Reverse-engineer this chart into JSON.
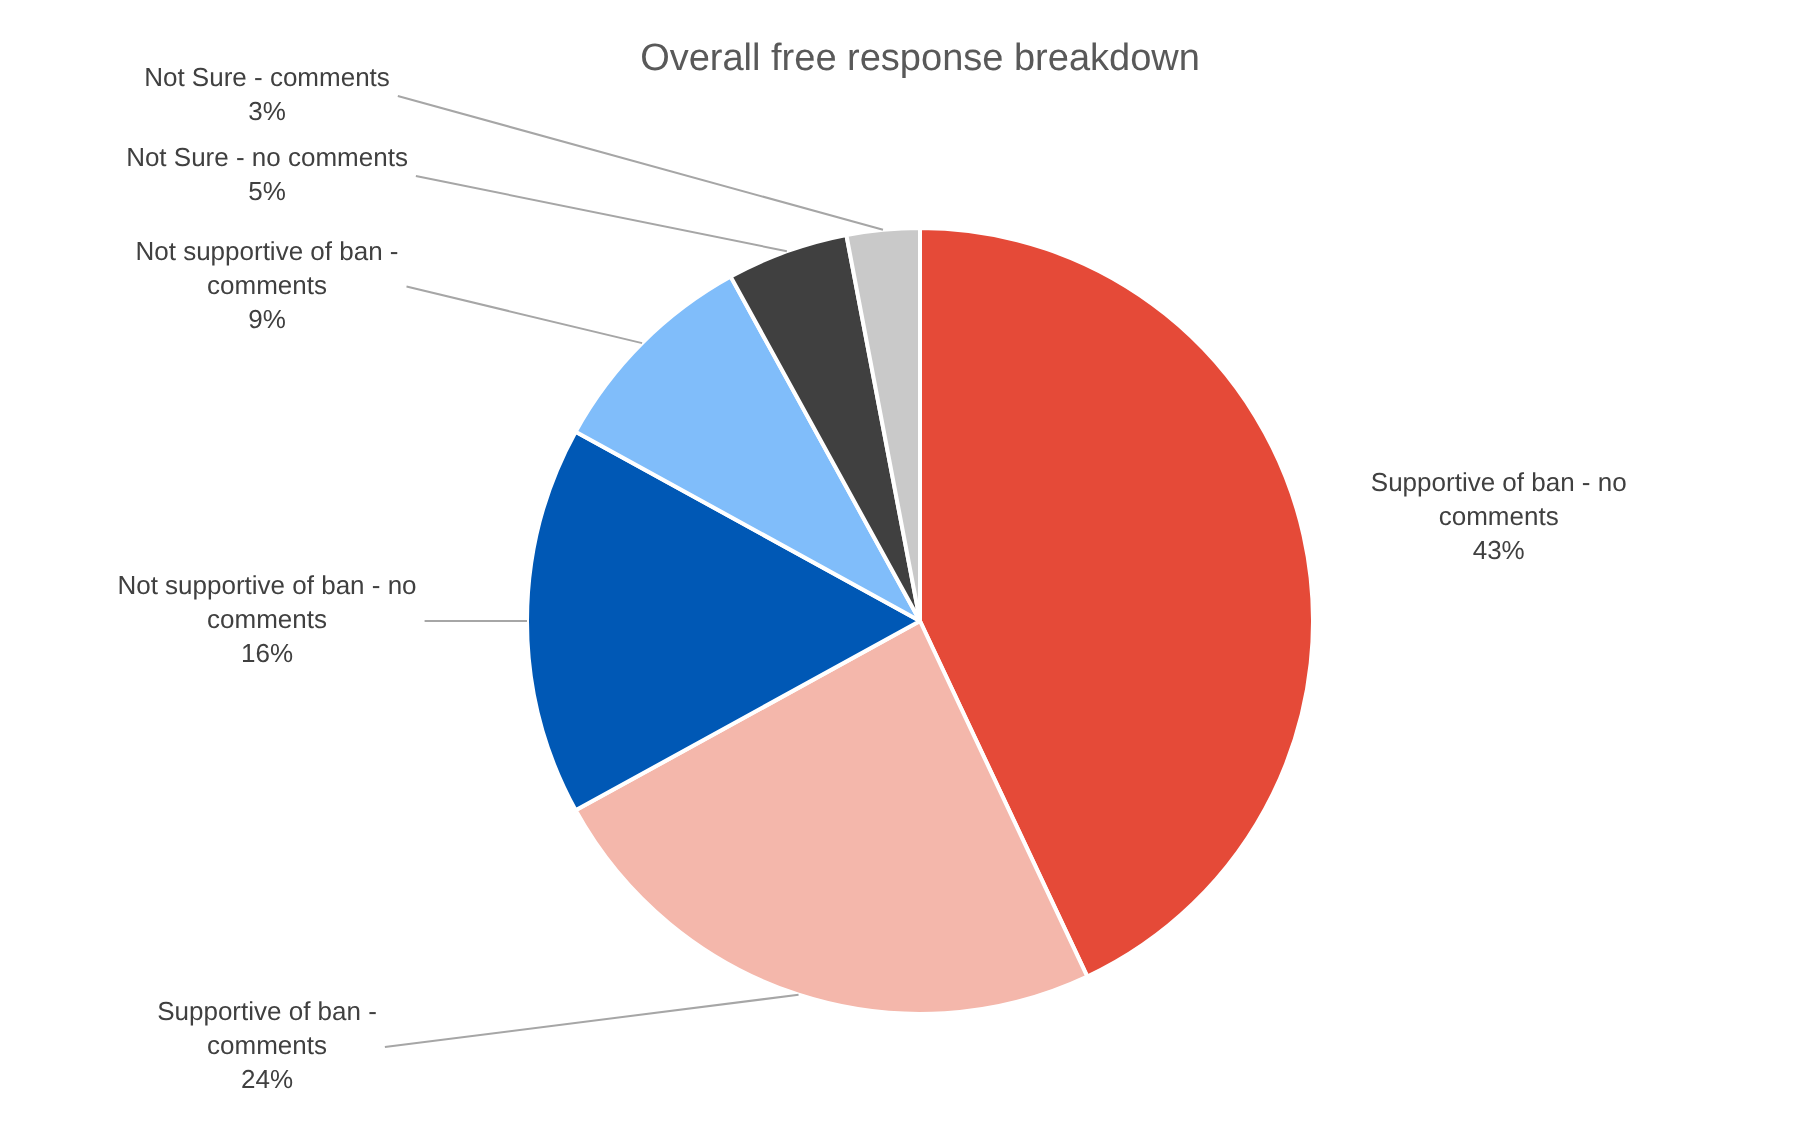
{
  "chart_data": {
    "type": "pie",
    "title": "Overall free response breakdown",
    "categories": [
      "Supportive of ban - no comments",
      "Supportive of ban - comments",
      "Not supportive of ban - no comments",
      "Not supportive of ban - comments",
      "Not Sure - no comments",
      "Not Sure - comments"
    ],
    "values": [
      43,
      24,
      16,
      9,
      5,
      3
    ],
    "value_labels": [
      "43%",
      "24%",
      "16%",
      "9%",
      "5%",
      "3%"
    ],
    "colors": [
      "#e54a38",
      "#f4b7ab",
      "#0058b5",
      "#80bdfa",
      "#404040",
      "#c9c9c9"
    ],
    "legend": false
  }
}
